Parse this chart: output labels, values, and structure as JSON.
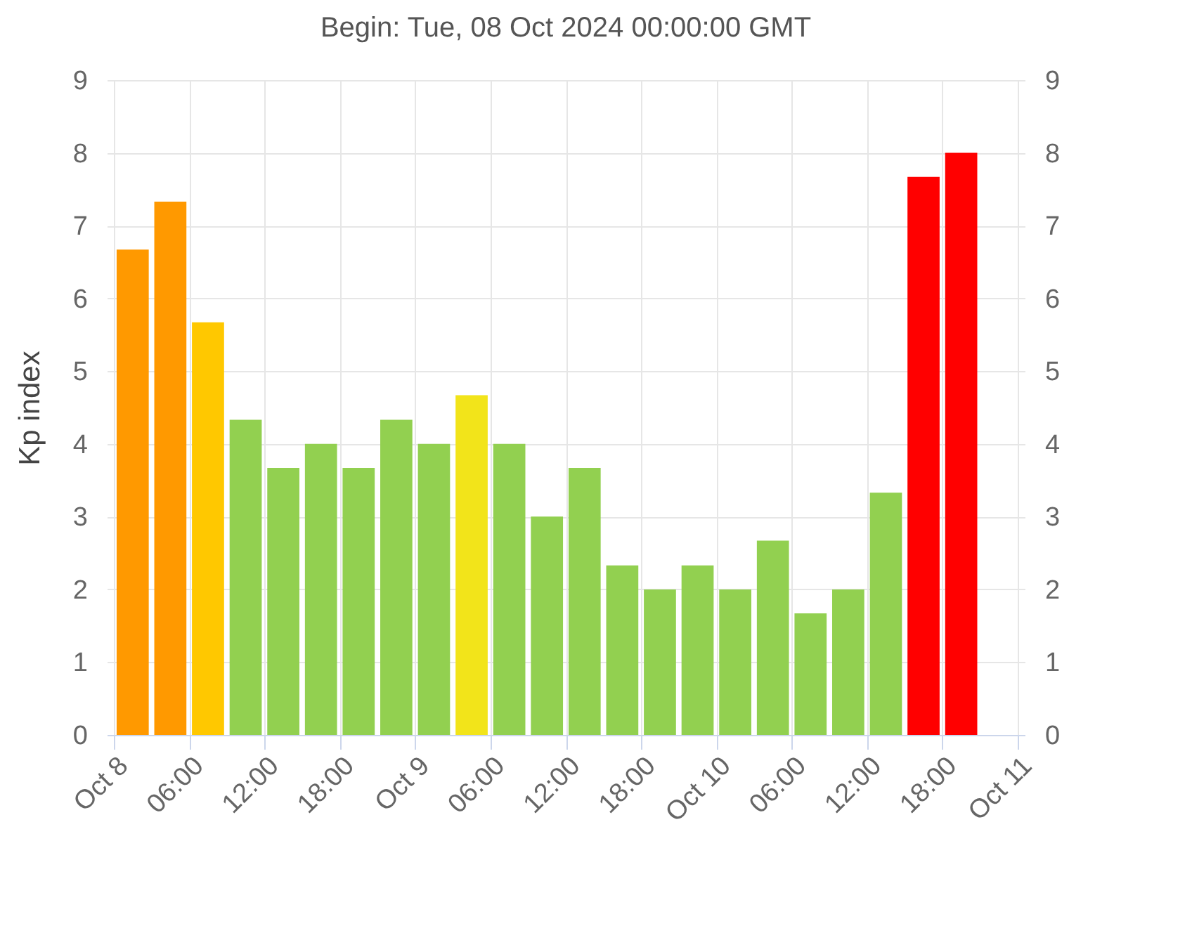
{
  "chart_data": {
    "type": "bar",
    "title": "Begin: Tue, 08 Oct 2024 00:00:00 GMT",
    "ylabel": "Kp index",
    "x": [
      "2024-10-08T01:30",
      "2024-10-08T04:30",
      "2024-10-08T07:30",
      "2024-10-08T10:30",
      "2024-10-08T13:30",
      "2024-10-08T16:30",
      "2024-10-08T19:30",
      "2024-10-08T22:30",
      "2024-10-09T01:30",
      "2024-10-09T04:30",
      "2024-10-09T07:30",
      "2024-10-09T10:30",
      "2024-10-09T13:30",
      "2024-10-09T16:30",
      "2024-10-09T19:30",
      "2024-10-09T22:30",
      "2024-10-10T01:30",
      "2024-10-10T04:30",
      "2024-10-10T07:30",
      "2024-10-10T10:30",
      "2024-10-10T13:30",
      "2024-10-10T16:30",
      "2024-10-10T19:30"
    ],
    "values": [
      6.67,
      7.33,
      5.67,
      4.33,
      3.67,
      4.0,
      3.67,
      4.33,
      4.0,
      4.67,
      4.0,
      3.0,
      3.67,
      2.33,
      2.0,
      2.33,
      2.0,
      2.67,
      1.67,
      2.0,
      3.33,
      7.67,
      8.0
    ],
    "colors": [
      "#ff9900",
      "#ff9900",
      "#ffc800",
      "#92d050",
      "#92d050",
      "#92d050",
      "#92d050",
      "#92d050",
      "#92d050",
      "#f2e41a",
      "#92d050",
      "#92d050",
      "#92d050",
      "#92d050",
      "#92d050",
      "#92d050",
      "#92d050",
      "#92d050",
      "#92d050",
      "#92d050",
      "#92d050",
      "#ff0000",
      "#ff0000"
    ],
    "xlim": [
      "2024-10-08T00:00",
      "2024-10-11T00:00"
    ],
    "xticks": [
      {
        "value": "2024-10-08T00:00",
        "label": "Oct 8"
      },
      {
        "value": "2024-10-08T06:00",
        "label": "06:00"
      },
      {
        "value": "2024-10-08T12:00",
        "label": "12:00"
      },
      {
        "value": "2024-10-08T18:00",
        "label": "18:00"
      },
      {
        "value": "2024-10-09T00:00",
        "label": "Oct 9"
      },
      {
        "value": "2024-10-09T06:00",
        "label": "06:00"
      },
      {
        "value": "2024-10-09T12:00",
        "label": "12:00"
      },
      {
        "value": "2024-10-09T18:00",
        "label": "18:00"
      },
      {
        "value": "2024-10-10T00:00",
        "label": "Oct 10"
      },
      {
        "value": "2024-10-10T06:00",
        "label": "06:00"
      },
      {
        "value": "2024-10-10T12:00",
        "label": "12:00"
      },
      {
        "value": "2024-10-10T18:00",
        "label": "18:00"
      },
      {
        "value": "2024-10-11T00:00",
        "label": "Oct 11"
      }
    ],
    "ylim": [
      0,
      9
    ],
    "yticks": [
      0,
      1,
      2,
      3,
      4,
      5,
      6,
      7,
      8,
      9
    ],
    "y2lim": [
      0,
      9
    ],
    "y2ticks": [
      0,
      1,
      2,
      3,
      4,
      5,
      6,
      7,
      8,
      9
    ],
    "grid": true,
    "legend": false
  }
}
